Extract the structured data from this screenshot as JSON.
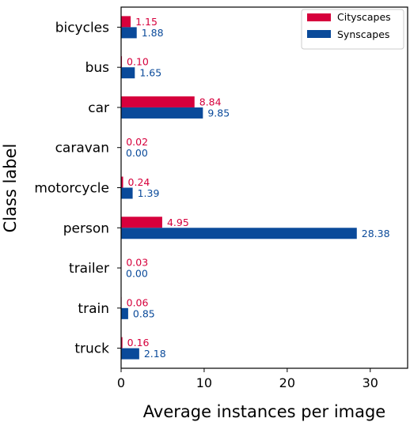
{
  "chart_data": {
    "type": "bar",
    "orientation": "horizontal",
    "categories": [
      "bicycles",
      "bus",
      "car",
      "caravan",
      "motorcycle",
      "person",
      "trailer",
      "train",
      "truck"
    ],
    "series": [
      {
        "name": "Cityscapes",
        "color": "#d6003c",
        "values": [
          1.15,
          0.1,
          8.84,
          0.02,
          0.24,
          4.95,
          0.03,
          0.06,
          0.16
        ],
        "labels": [
          "1.15",
          "0.10",
          "8.84",
          "0.02",
          "0.24",
          "4.95",
          "0.03",
          "0.06",
          "0.16"
        ]
      },
      {
        "name": "Synscapes",
        "color": "#0a4a9a",
        "values": [
          1.88,
          1.65,
          9.85,
          0.0,
          1.39,
          28.38,
          0.0,
          0.85,
          2.18
        ],
        "labels": [
          "1.88",
          "1.65",
          "9.85",
          "0.00",
          "1.39",
          "28.38",
          "0.00",
          "0.85",
          "2.18"
        ]
      }
    ],
    "xlabel": "Average instances per image",
    "ylabel": "Class label",
    "xlim": [
      0,
      34.5
    ],
    "xticks": [
      0,
      10,
      20,
      30
    ],
    "xtick_labels": [
      "0",
      "10",
      "20",
      "30"
    ],
    "grid": false,
    "legend_position": "top-right"
  }
}
